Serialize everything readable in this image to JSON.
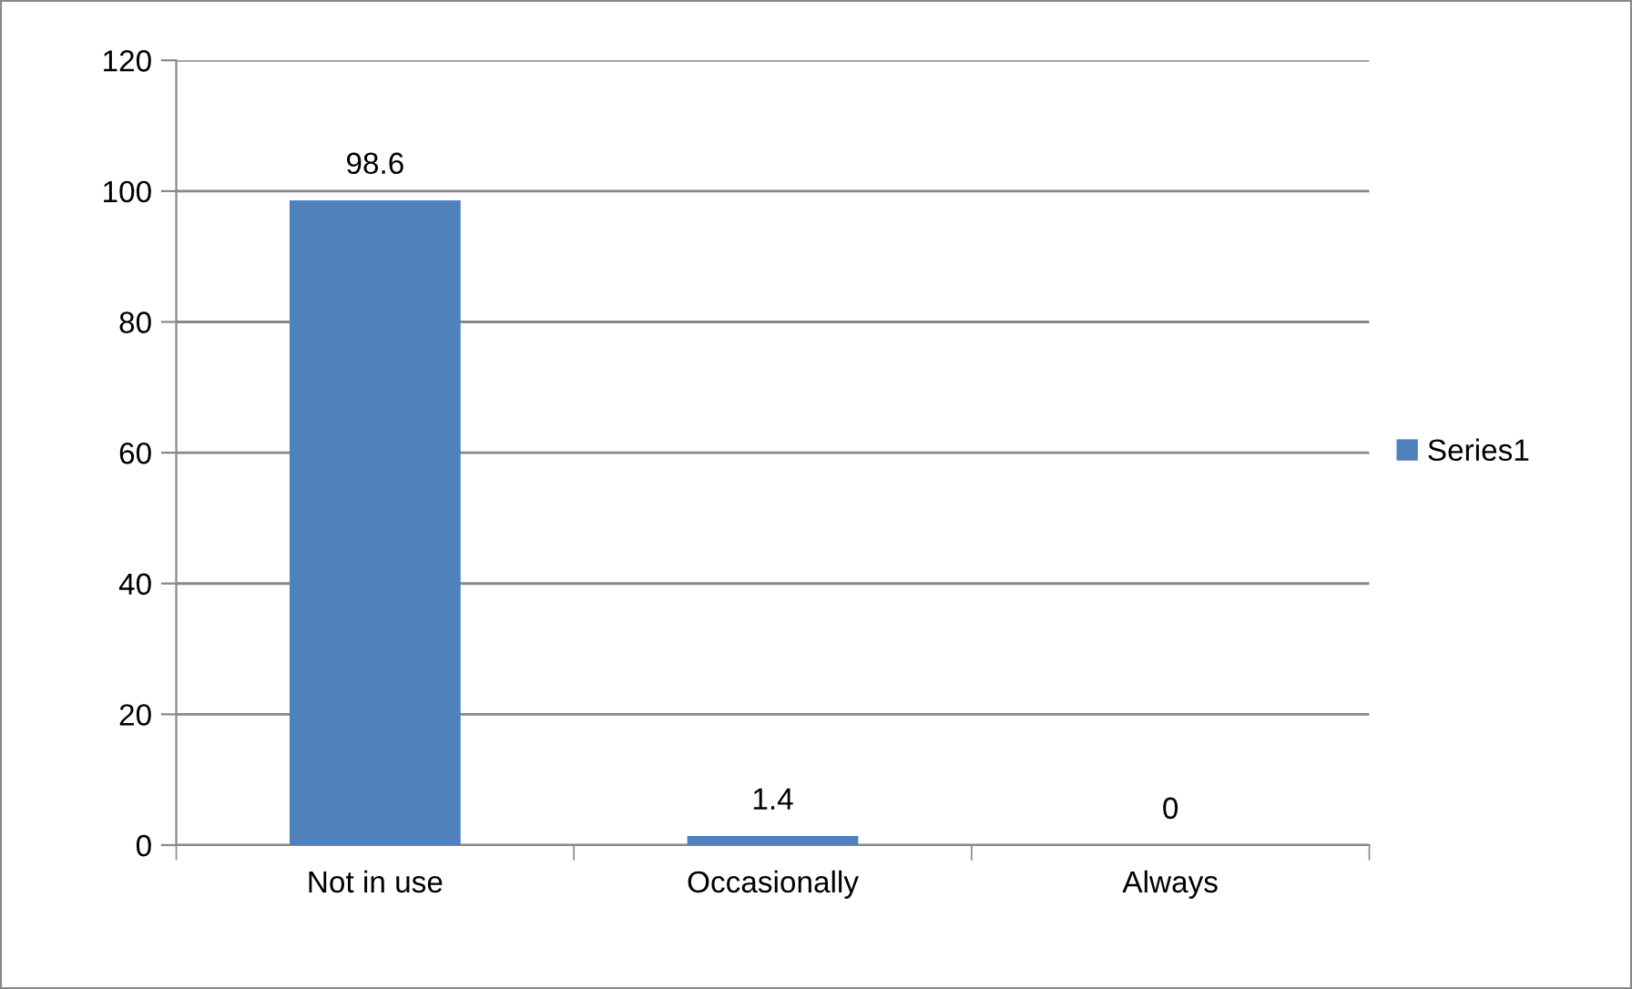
{
  "chart_data": {
    "type": "bar",
    "categories": [
      "Not in use",
      "Occasionally",
      "Always"
    ],
    "series": [
      {
        "name": "Series1",
        "color": "#4f81bd",
        "values": [
          98.6,
          1.4,
          0
        ]
      }
    ],
    "ylim": [
      0,
      120
    ],
    "yticks": [
      0,
      20,
      40,
      60,
      80,
      100,
      120
    ],
    "grid": "y",
    "legend": "right",
    "data_labels": true
  }
}
